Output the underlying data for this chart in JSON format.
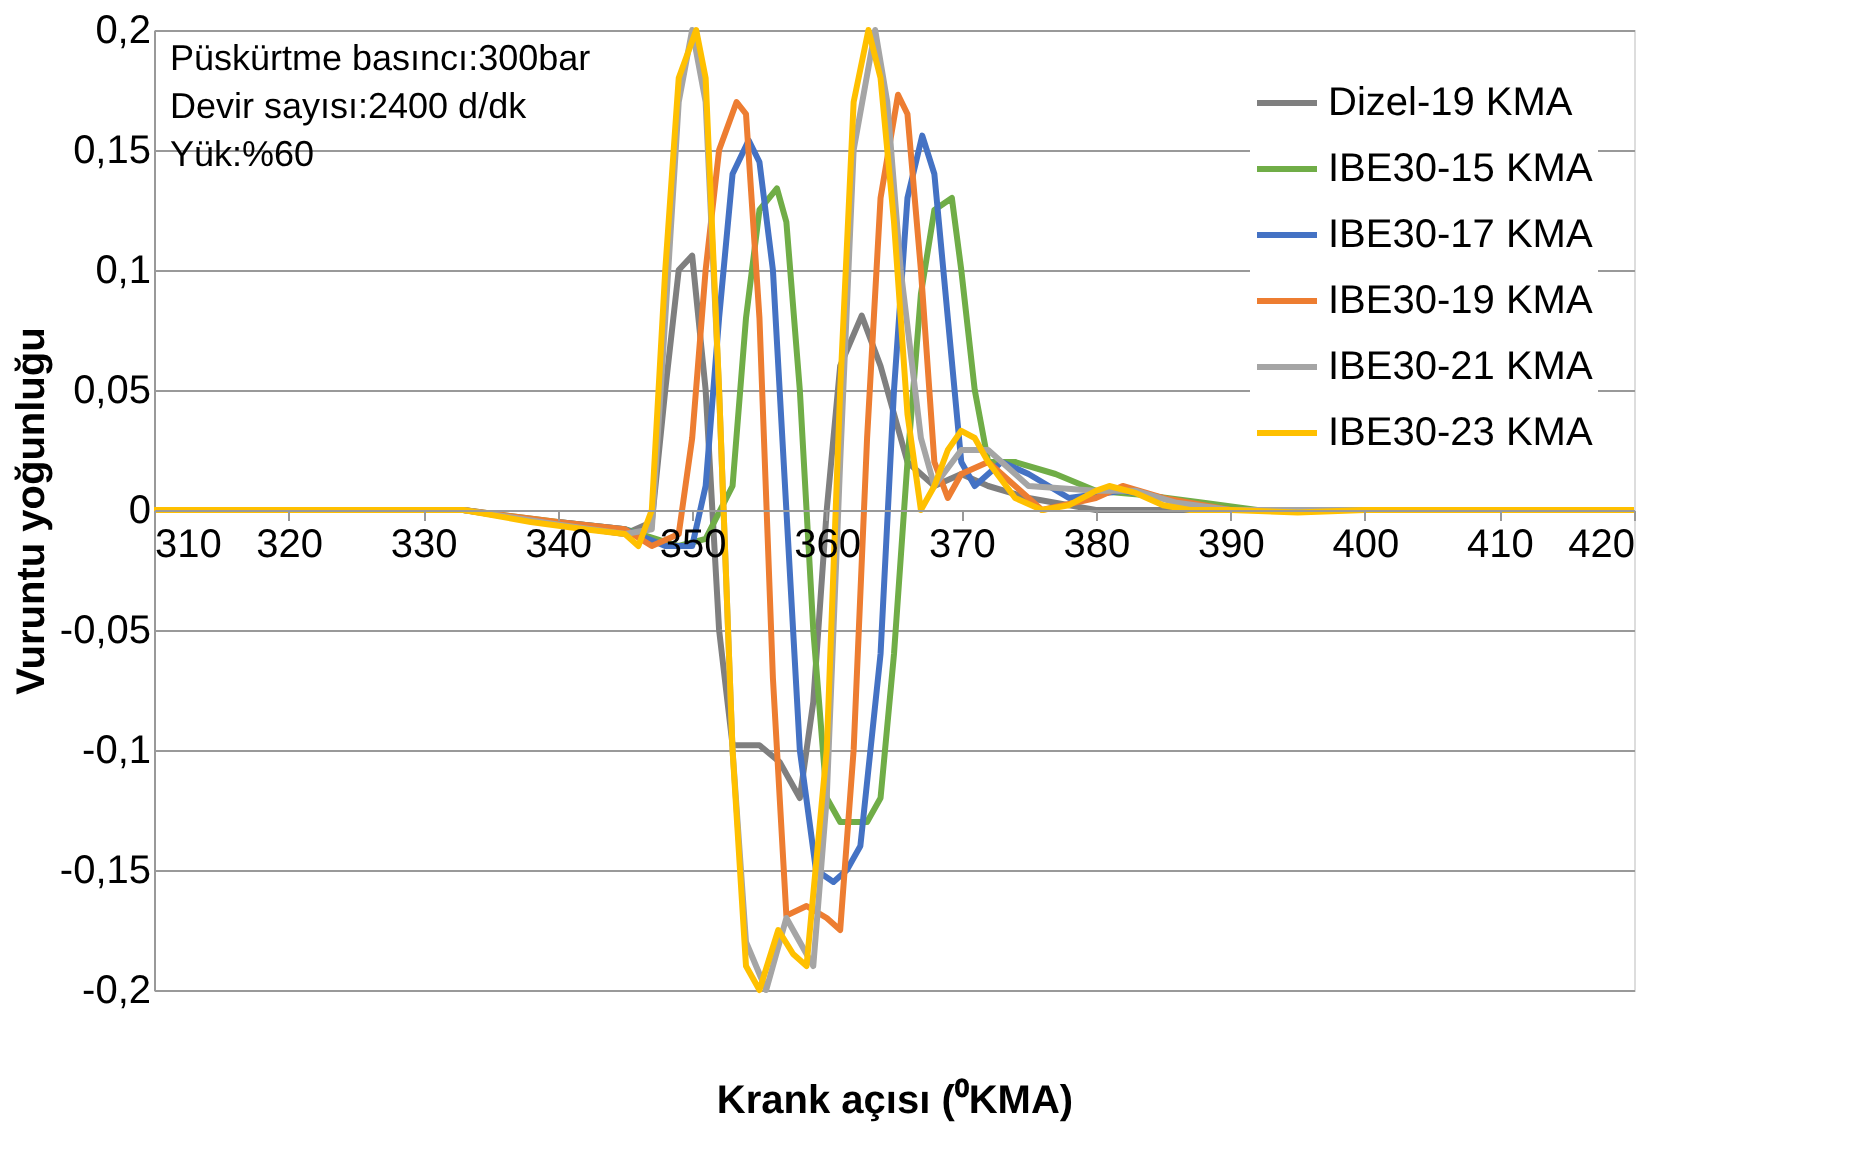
{
  "chart_data": {
    "type": "line",
    "xlabel": "Krank açısı (⁰KMA)",
    "ylabel": "Vuruntu yoğunluğu",
    "annotations": [
      "Püskürtme basıncı:300bar",
      "Devir sayısı:2400 d/dk",
      "Yük:%60"
    ],
    "xlim": [
      310,
      420
    ],
    "xticks": [
      310,
      320,
      330,
      340,
      350,
      360,
      370,
      380,
      390,
      400,
      410,
      420
    ],
    "ylim": [
      -0.2,
      0.2
    ],
    "yticks": [
      {
        "value": -0.2,
        "label": "-0,2"
      },
      {
        "value": -0.15,
        "label": "-0,15"
      },
      {
        "value": -0.1,
        "label": "-0,1"
      },
      {
        "value": -0.05,
        "label": "-0,05"
      },
      {
        "value": 0,
        "label": "0"
      },
      {
        "value": 0.05,
        "label": "0,05"
      },
      {
        "value": 0.1,
        "label": "0,1"
      },
      {
        "value": 0.15,
        "label": "0,15"
      },
      {
        "value": 0.2,
        "label": "0,2"
      }
    ],
    "grid": "y",
    "legend": "top right",
    "marker": "none",
    "line_style": "solid",
    "series": [
      {
        "name": "Dizel-19 KMA",
        "color": "#7f7f7f",
        "x": [
          310,
          333,
          340,
          345,
          347,
          348,
          349,
          350,
          351,
          352,
          353,
          355,
          356.5,
          358,
          359,
          360,
          361,
          362.6,
          364,
          366,
          368,
          370,
          372,
          375,
          380,
          390,
          400,
          410,
          420
        ],
        "values": [
          0,
          0,
          -0.006,
          -0.01,
          -0.005,
          0.05,
          0.1,
          0.106,
          0.05,
          -0.05,
          -0.098,
          -0.098,
          -0.105,
          -0.12,
          -0.08,
          0,
          0.06,
          0.081,
          0.06,
          0.02,
          0.01,
          0.015,
          0.01,
          0.005,
          0,
          0,
          0,
          0,
          0
        ]
      },
      {
        "name": "IBE30-15 KMA",
        "color": "#70ad47",
        "x": [
          310,
          333,
          340,
          345,
          349,
          351,
          353,
          354,
          355,
          356.3,
          357,
          358,
          359,
          360,
          361,
          363,
          364,
          365,
          366,
          367,
          368,
          369.3,
          370,
          371,
          372,
          374,
          377,
          380,
          384,
          388,
          392,
          400
        ],
        "values": [
          0,
          0,
          -0.005,
          -0.008,
          -0.015,
          -0.012,
          0.01,
          0.08,
          0.125,
          0.134,
          0.12,
          0.05,
          -0.05,
          -0.12,
          -0.13,
          -0.13,
          -0.12,
          -0.06,
          0.02,
          0.09,
          0.125,
          0.13,
          0.1,
          0.05,
          0.02,
          0.02,
          0.015,
          0.008,
          0.006,
          0.003,
          0,
          0
        ]
      },
      {
        "name": "IBE30-17 KMA",
        "color": "#4472c4",
        "x": [
          340,
          345,
          348,
          350,
          351,
          352,
          353,
          354.2,
          355,
          356,
          357,
          358,
          359.2,
          360.5,
          361.5,
          362.5,
          364,
          365,
          366,
          367.1,
          368,
          369,
          370,
          371,
          373,
          375,
          378,
          382,
          385
        ],
        "values": [
          -0.005,
          -0.008,
          -0.015,
          -0.015,
          0.01,
          0.08,
          0.14,
          0.154,
          0.145,
          0.1,
          0,
          -0.1,
          -0.15,
          -0.155,
          -0.15,
          -0.14,
          -0.06,
          0.05,
          0.13,
          0.156,
          0.14,
          0.08,
          0.02,
          0.01,
          0.02,
          0.015,
          0.005,
          0.008,
          0.005
        ]
      },
      {
        "name": "IBE30-19 KMA",
        "color": "#ed7d31",
        "x": [
          310,
          333,
          340,
          345,
          347,
          349,
          350,
          351,
          352,
          353.3,
          354,
          355,
          356,
          357,
          358.5,
          360,
          361,
          362,
          363,
          364,
          365.3,
          366,
          367,
          368,
          369,
          370,
          372,
          374,
          376,
          380,
          382,
          385,
          390,
          400
        ],
        "values": [
          0,
          0,
          -0.005,
          -0.008,
          -0.015,
          -0.01,
          0.03,
          0.1,
          0.15,
          0.17,
          0.165,
          0.08,
          -0.07,
          -0.169,
          -0.165,
          -0.17,
          -0.175,
          -0.1,
          0.03,
          0.13,
          0.173,
          0.165,
          0.1,
          0.02,
          0.005,
          0.015,
          0.02,
          0.01,
          0,
          0.005,
          0.01,
          0.005,
          0,
          0
        ]
      },
      {
        "name": "IBE30-21 KMA",
        "color": "#a5a5a5",
        "x": [
          310,
          333,
          340,
          345,
          347,
          348,
          349,
          350,
          351,
          352,
          353,
          354,
          355.5,
          357,
          359,
          360,
          361,
          362,
          363.6,
          364.5,
          365.5,
          367,
          368,
          370,
          372,
          375,
          380,
          383,
          386,
          390,
          400,
          410,
          420
        ],
        "values": [
          0,
          0,
          -0.006,
          -0.01,
          -0.008,
          0.08,
          0.17,
          0.2,
          0.17,
          0.05,
          -0.1,
          -0.18,
          -0.2,
          -0.17,
          -0.19,
          -0.12,
          0.02,
          0.15,
          0.2,
          0.17,
          0.1,
          0.03,
          0.01,
          0.025,
          0.025,
          0.01,
          0.008,
          0.008,
          0.003,
          0,
          0,
          0,
          0
        ]
      },
      {
        "name": "IBE30-23 KMA",
        "color": "#ffc000",
        "x": [
          310,
          333,
          338,
          342,
          345,
          346,
          347,
          348,
          349,
          350.3,
          351,
          352,
          353,
          354,
          355,
          356.4,
          357.5,
          358.5,
          360,
          361,
          362,
          363.1,
          364,
          365,
          366,
          367,
          368,
          369,
          370,
          371,
          372,
          374,
          376,
          378,
          380,
          381,
          383,
          385,
          387,
          390,
          395,
          400,
          410,
          420
        ],
        "values": [
          0,
          0,
          -0.005,
          -0.008,
          -0.01,
          -0.015,
          0,
          0.1,
          0.18,
          0.2,
          0.18,
          0.05,
          -0.1,
          -0.19,
          -0.2,
          -0.175,
          -0.185,
          -0.19,
          -0.1,
          0.05,
          0.17,
          0.2,
          0.18,
          0.12,
          0.04,
          0,
          0.01,
          0.025,
          0.033,
          0.03,
          0.02,
          0.005,
          0,
          0.002,
          0.008,
          0.01,
          0.007,
          0.002,
          0,
          0,
          -0.001,
          0,
          0,
          0
        ]
      }
    ]
  }
}
